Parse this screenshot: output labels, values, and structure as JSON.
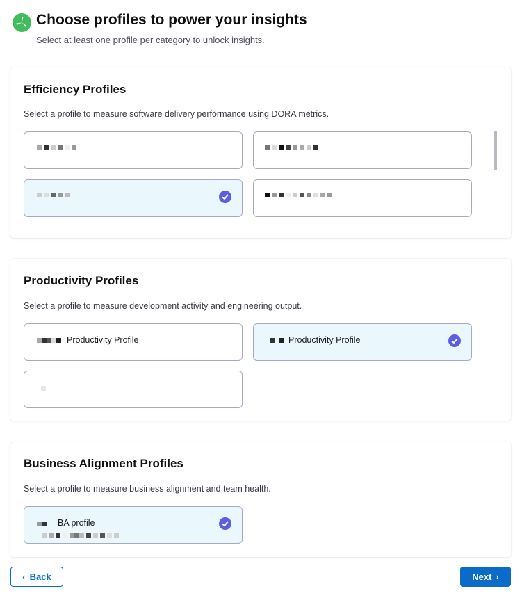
{
  "header": {
    "title": "Choose profiles to power your insights",
    "subtitle": "Select at least one profile per category to unlock insights.",
    "icon": "pinwheel-logo-icon",
    "icon_color": "#42bd5c"
  },
  "sections": [
    {
      "title": "Efficiency Profiles",
      "description": "Select a profile to measure software delivery performance using DORA metrics.",
      "profiles": [
        {
          "label": "",
          "selected": false
        },
        {
          "label": "",
          "selected": false
        },
        {
          "label": "",
          "selected": true
        },
        {
          "label": "",
          "selected": false
        }
      ]
    },
    {
      "title": "Productivity Profiles",
      "description": "Select a profile to measure development activity and engineering output.",
      "profiles": [
        {
          "label": "Productivity Profile",
          "selected": false
        },
        {
          "label": "Productivity Profile",
          "selected": true
        },
        {
          "label": "",
          "selected": false
        }
      ]
    },
    {
      "title": "Business Alignment Profiles",
      "description": "Select a profile to measure business alignment and team health.",
      "profiles": [
        {
          "label": "BA profile",
          "selected": true
        }
      ]
    }
  ],
  "footer": {
    "back_label": "Back",
    "next_label": "Next"
  },
  "colors": {
    "primary": "#0a6bc8",
    "check": "#5d5ee6",
    "selected_bg": "#eaf7fd"
  }
}
